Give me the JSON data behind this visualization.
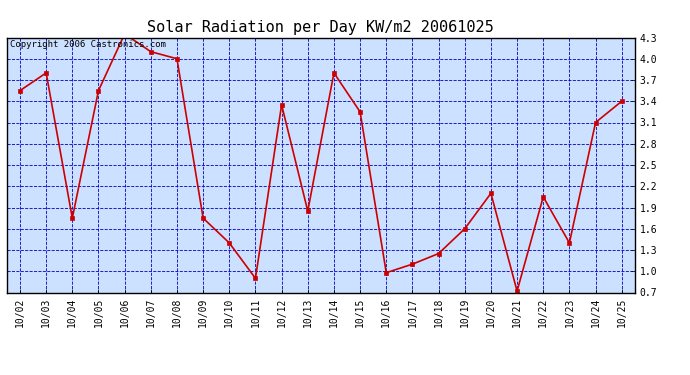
{
  "title": "Solar Radiation per Day KW/m2 20061025",
  "copyright": "Copyright 2006 Castronics.com",
  "dates": [
    "10/02",
    "10/03",
    "10/04",
    "10/05",
    "10/06",
    "10/07",
    "10/08",
    "10/09",
    "10/10",
    "10/11",
    "10/12",
    "10/13",
    "10/14",
    "10/15",
    "10/16",
    "10/17",
    "10/18",
    "10/19",
    "10/20",
    "10/21",
    "10/22",
    "10/23",
    "10/24",
    "10/25"
  ],
  "values": [
    3.55,
    3.8,
    1.75,
    3.55,
    4.35,
    4.1,
    4.0,
    1.75,
    1.4,
    0.9,
    3.35,
    1.85,
    3.8,
    3.25,
    0.98,
    1.1,
    1.25,
    1.6,
    2.1,
    0.72,
    2.05,
    1.4,
    3.1,
    3.4
  ],
  "ylim": [
    0.7,
    4.3
  ],
  "yticks": [
    0.7,
    1.0,
    1.3,
    1.6,
    1.9,
    2.2,
    2.5,
    2.8,
    3.1,
    3.4,
    3.7,
    4.0,
    4.3
  ],
  "line_color": "#cc0000",
  "marker_color": "#cc0000",
  "bg_color": "#cce0ff",
  "grid_color": "#0000bb",
  "title_fontsize": 11,
  "tick_fontsize": 7,
  "copyright_fontsize": 6.5
}
